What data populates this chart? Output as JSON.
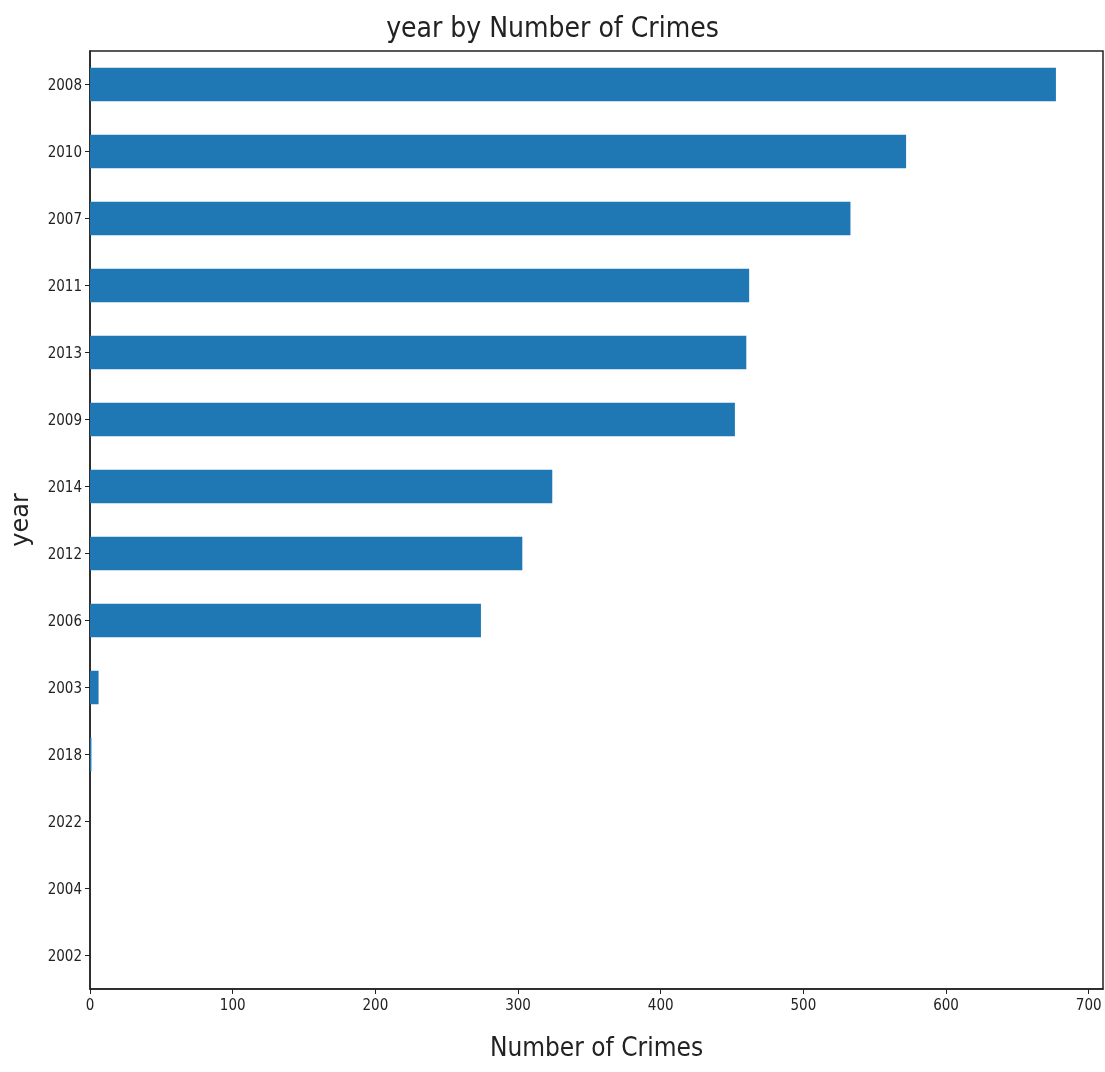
{
  "chart_data": {
    "type": "bar",
    "orientation": "horizontal",
    "title": "year by Number of Crimes",
    "xlabel": "Number of Crimes",
    "ylabel": "year",
    "categories": [
      "2008",
      "2010",
      "2007",
      "2011",
      "2013",
      "2009",
      "2014",
      "2012",
      "2006",
      "2003",
      "2018",
      "2022",
      "2004",
      "2002"
    ],
    "values": [
      677,
      572,
      533,
      462,
      460,
      452,
      324,
      303,
      274,
      6,
      1,
      0,
      0,
      0
    ],
    "color": "#1f77b4",
    "xlim": [
      0,
      710
    ],
    "xticks": [
      0,
      100,
      200,
      300,
      400,
      500,
      600,
      700
    ],
    "grid": false
  }
}
